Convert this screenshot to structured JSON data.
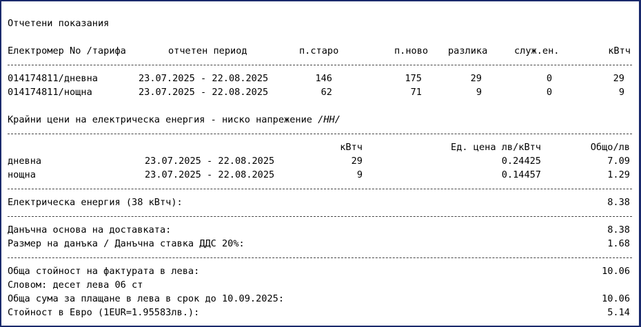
{
  "readings": {
    "title": "Отчетени показания",
    "headers": {
      "meter": "Електромер No /тарифа",
      "period": "отчетен период",
      "old": "п.старо",
      "new": "п.ново",
      "diff": "разлика",
      "service": "служ.ен.",
      "kwh": "кВтч"
    },
    "rows": [
      {
        "meter": "014174811/дневна",
        "period": "23.07.2025 - 22.08.2025",
        "old": "146",
        "new": "175",
        "diff": "29",
        "service": "0",
        "kwh": "29"
      },
      {
        "meter": "014174811/нощна",
        "period": "23.07.2025 - 22.08.2025",
        "old": "62",
        "new": "71",
        "diff": "9",
        "service": "0",
        "kwh": "9"
      }
    ]
  },
  "prices": {
    "title": "Крайни цени на електрическа енергия - ниско напрежение",
    "title_suffix": "/НН/",
    "headers": {
      "kwh": "кВтч",
      "unit_price": "Ед. цена лв/кВтч",
      "total": "Общо/лв"
    },
    "rows": [
      {
        "tariff": "дневна",
        "period": "23.07.2025 - 22.08.2025",
        "kwh": "29",
        "unit_price": "0.24425",
        "total": "7.09"
      },
      {
        "tariff": "нощна",
        "period": "23.07.2025 - 22.08.2025",
        "kwh": "9",
        "unit_price": "0.14457",
        "total": "1.29"
      }
    ]
  },
  "totals": {
    "energy": {
      "label": "Електрическа енергия (38 кВтч):",
      "value": "8.38"
    },
    "tax_base": {
      "label": "Данъчна основа на доставката:",
      "value": "8.38"
    },
    "vat": {
      "label": "Размер на данъка / Данъчна ставка ДДС 20%:",
      "value": "1.68"
    },
    "invoice_total": {
      "label": "Обща стойност на фактурата в лева:",
      "value": "10.06"
    },
    "in_words": {
      "label": "Словом: десет лева 06 ст"
    },
    "due": {
      "label": "Обща сума за плащане в лева в срок до 10.09.2025:",
      "value": "10.06"
    },
    "eur": {
      "label": "Стойност в Евро (1EUR=1.95583лв.):",
      "value": "5.14"
    }
  }
}
